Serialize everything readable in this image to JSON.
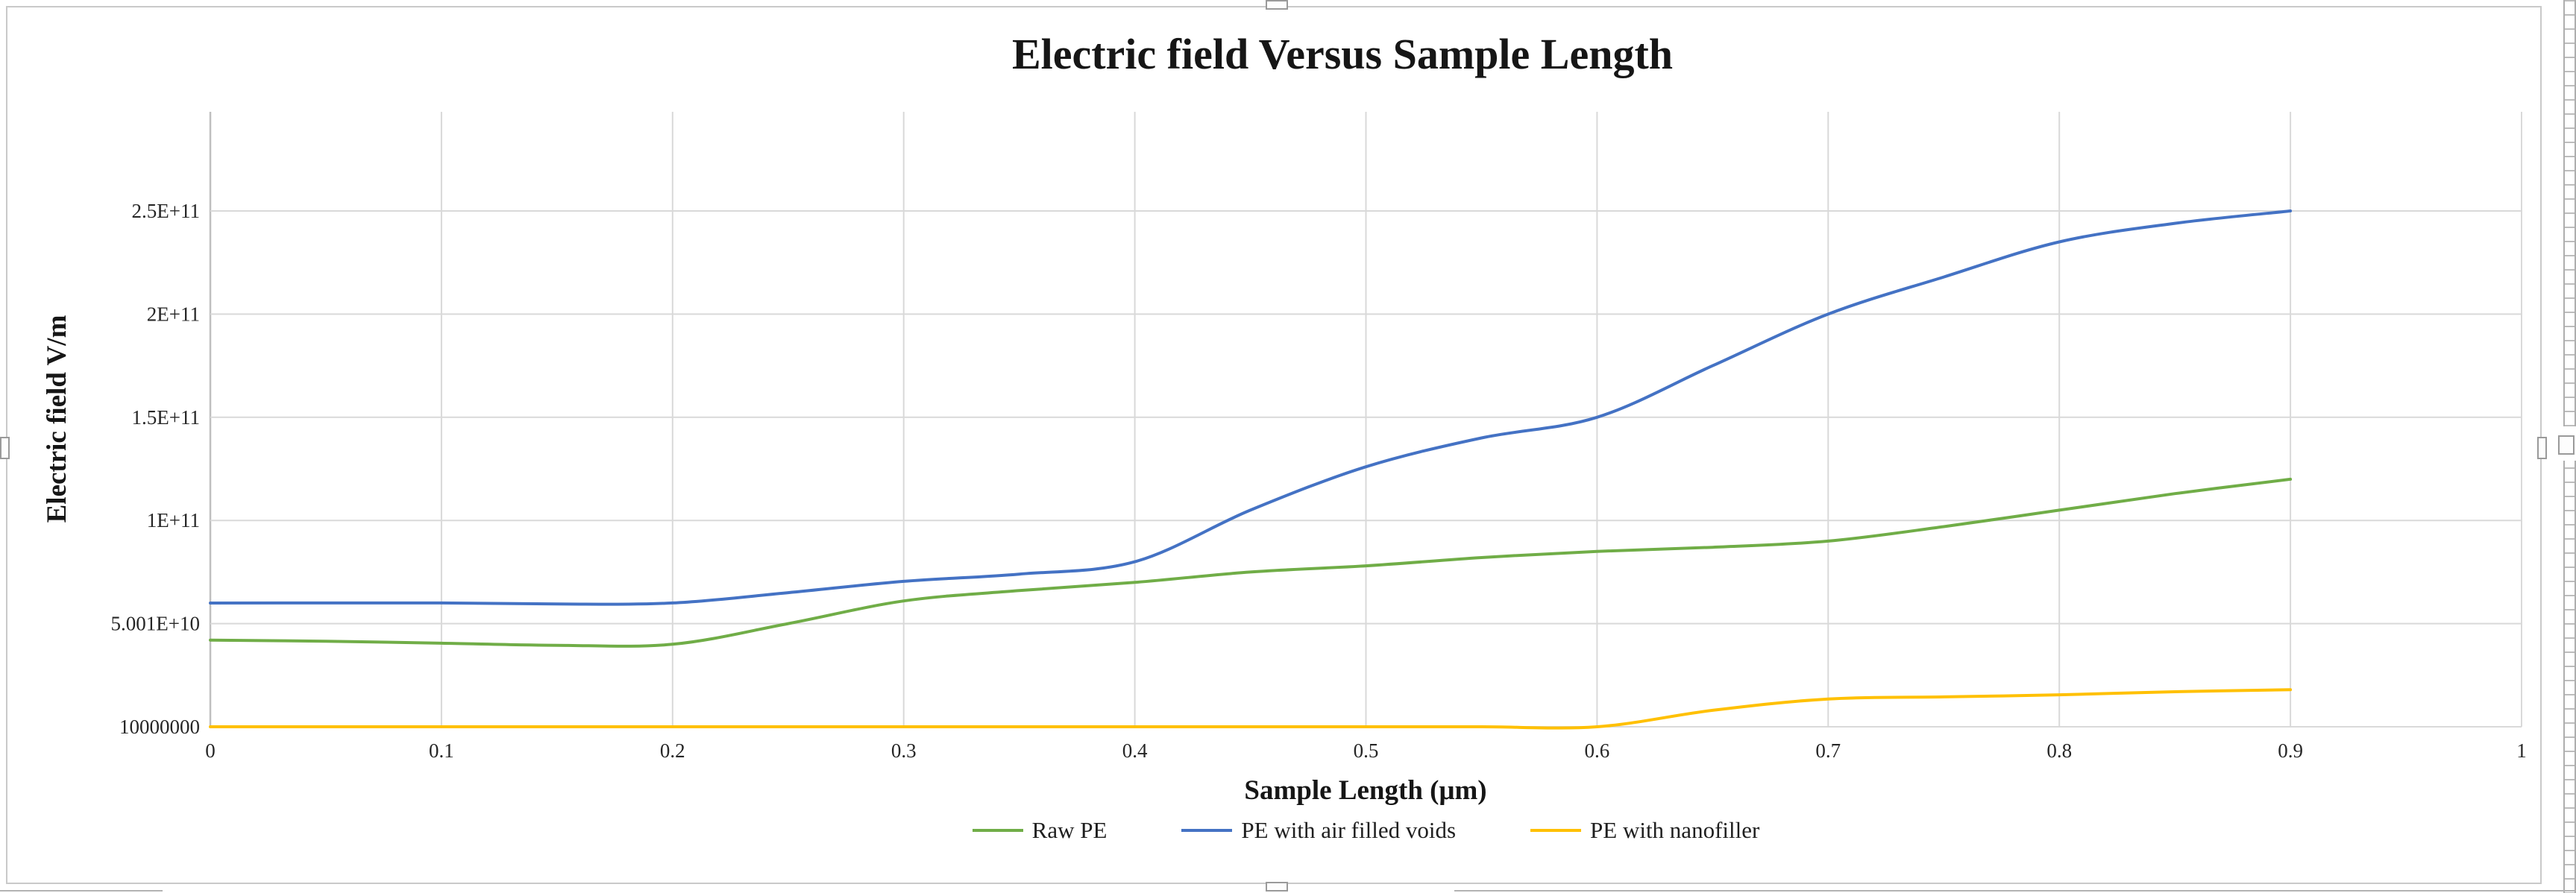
{
  "chart": {
    "title": "Electric field Versus Sample Length",
    "y_axis": {
      "title": "Electric field V/m",
      "ticks": [
        {
          "label": "2.5E+11",
          "value": 250000000000.0
        },
        {
          "label": "2E+11",
          "value": 200000000000.0
        },
        {
          "label": "1.5E+11",
          "value": 150000000000.0
        },
        {
          "label": "1E+11",
          "value": 100000000000.0
        },
        {
          "label": "5.001E+10",
          "value": 50010000000.0
        },
        {
          "label": "10000000",
          "value": 10000000.0
        }
      ]
    },
    "x_axis": {
      "title": "Sample Length (μm)",
      "ticks": [
        {
          "label": "0",
          "value": 0
        },
        {
          "label": "0.1",
          "value": 0.1
        },
        {
          "label": "0.2",
          "value": 0.2
        },
        {
          "label": "0.3",
          "value": 0.3
        },
        {
          "label": "0.4",
          "value": 0.4
        },
        {
          "label": "0.5",
          "value": 0.5
        },
        {
          "label": "0.6",
          "value": 0.6
        },
        {
          "label": "0.7",
          "value": 0.7
        },
        {
          "label": "0.8",
          "value": 0.8
        },
        {
          "label": "0.9",
          "value": 0.9
        },
        {
          "label": "1",
          "value": 1
        }
      ]
    },
    "colors": {
      "grid": "#d9d9d9",
      "axis": "#bfbfbf",
      "raw_pe": "#70AD47",
      "air_voids": "#4472C4",
      "nanofiller": "#FFC000"
    }
  },
  "chart_data": {
    "type": "line",
    "title": "Electric field Versus Sample Length",
    "xlabel": "Sample Length (μm)",
    "ylabel": "Electric field V/m",
    "xlim": [
      0,
      1
    ],
    "ylim": [
      10000000.0,
      250000000000.0
    ],
    "grid": true,
    "legend_position": "bottom",
    "x": [
      0,
      0.05,
      0.1,
      0.15,
      0.2,
      0.25,
      0.3,
      0.35,
      0.4,
      0.45,
      0.5,
      0.55,
      0.6,
      0.65,
      0.7,
      0.75,
      0.8,
      0.85,
      0.9
    ],
    "series": [
      {
        "name": "Raw PE",
        "color": "#70AD47",
        "values": [
          42000000000.0,
          41500000000.0,
          40500000000.0,
          39500000000.0,
          40000000000.0,
          50000000000.0,
          61000000000.0,
          66000000000.0,
          70000000000.0,
          75000000000.0,
          78000000000.0,
          82000000000.0,
          85000000000.0,
          87000000000.0,
          90000000000.0,
          97000000000.0,
          105000000000.0,
          113000000000.0,
          120000000000.0
        ]
      },
      {
        "name": "PE with air filled voids",
        "color": "#4472C4",
        "values": [
          60000000000.0,
          60000000000.0,
          60000000000.0,
          59500000000.0,
          60000000000.0,
          65000000000.0,
          70500000000.0,
          74000000000.0,
          80000000000.0,
          105000000000.0,
          126000000000.0,
          140000000000.0,
          150000000000.0,
          175000000000.0,
          200000000000.0,
          218000000000.0,
          235000000000.0,
          244000000000.0,
          250000000000.0
        ]
      },
      {
        "name": "PE with nanofiller",
        "color": "#FFC000",
        "values": [
          10000000.0,
          10000000.0,
          10000000.0,
          10000000.0,
          10000000.0,
          10000000.0,
          10000000.0,
          10000000.0,
          10000000.0,
          10000000.0,
          10000000.0,
          10000000.0,
          10000000.0,
          8000000000.0,
          13500000000.0,
          14500000000.0,
          15500000000.0,
          17000000000.0,
          18000000000.0
        ]
      }
    ]
  }
}
